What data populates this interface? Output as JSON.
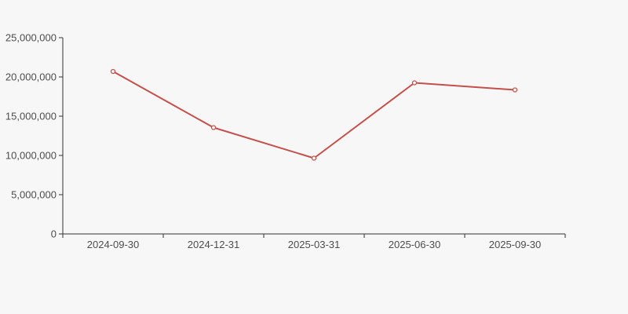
{
  "chart": {
    "background_color": "#f7f7f7",
    "line_color": "#c3504b",
    "marker_fill_color": "#ffffff",
    "axis_color": "#333333",
    "label_color": "#4d4d4d"
  },
  "chart_data": {
    "type": "line",
    "title": "",
    "xlabel": "",
    "ylabel": "",
    "categories": [
      "2024-09-30",
      "2024-12-31",
      "2025-03-31",
      "2025-06-30",
      "2025-09-30"
    ],
    "series": [
      {
        "name": "value",
        "values": [
          20700000,
          13550000,
          9650000,
          19250000,
          18350000
        ]
      }
    ],
    "ylim": [
      0,
      25000000
    ],
    "y_ticks": [
      0,
      5000000,
      10000000,
      15000000,
      20000000,
      25000000
    ],
    "y_tick_labels": [
      "0",
      "5,000,000",
      "10,000,000",
      "15,000,000",
      "20,000,000",
      "25,000,000"
    ],
    "grid": false,
    "legend": false,
    "marker": "open-circle"
  }
}
